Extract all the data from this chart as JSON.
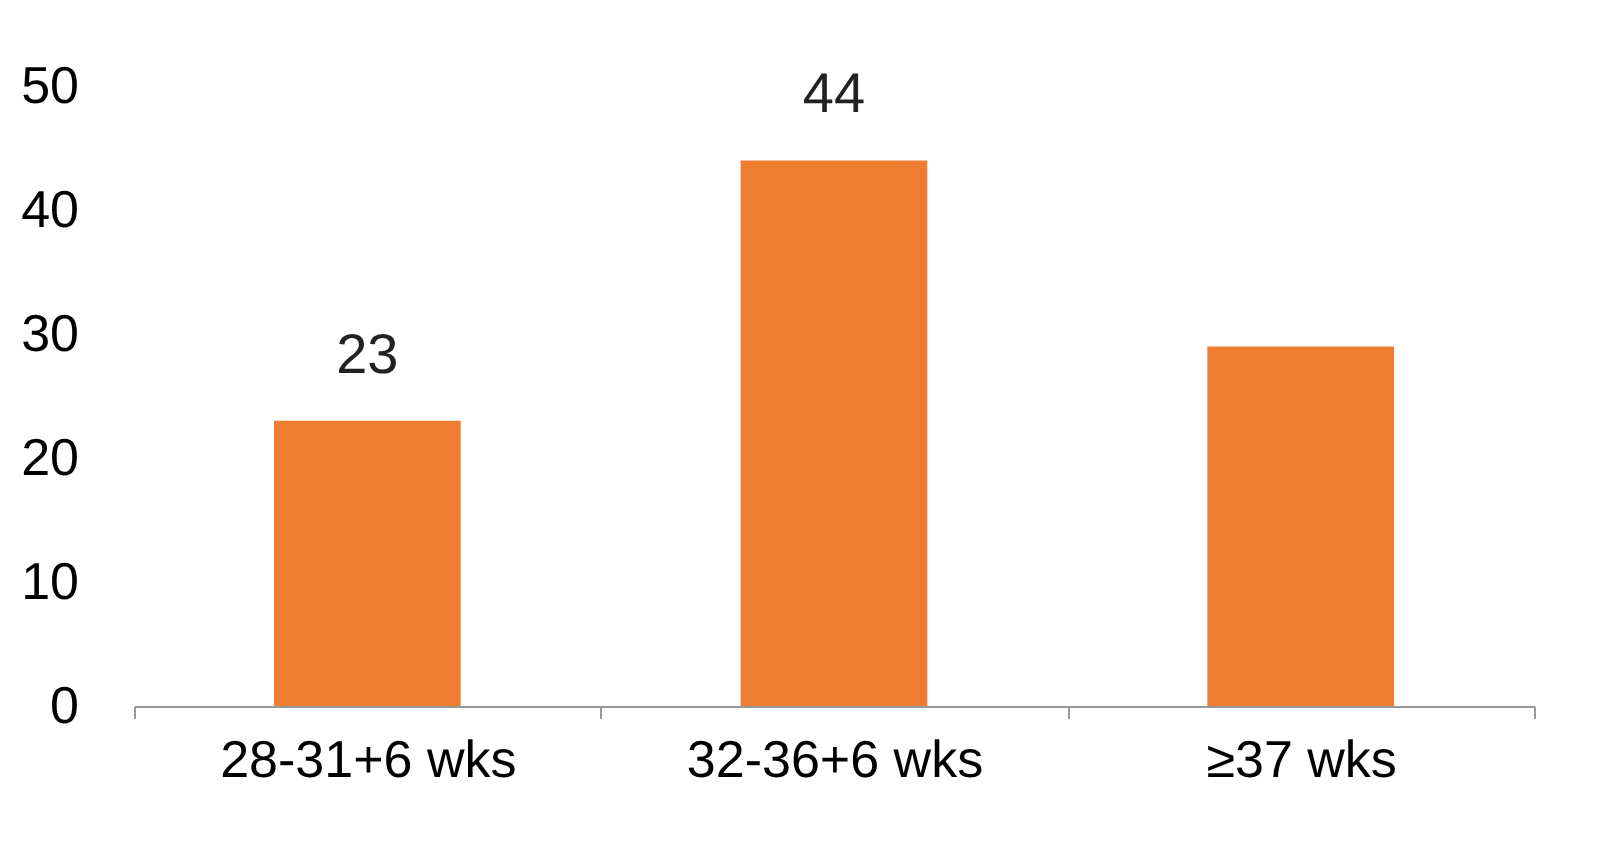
{
  "chart_data": {
    "type": "bar",
    "categories": [
      "28-31+6 wks",
      "32-36+6 wks",
      "≥37 wks"
    ],
    "values": [
      23,
      44,
      29
    ],
    "value_labels": [
      "23",
      "44",
      null
    ],
    "color": "#ed7d31",
    "ylim": [
      0,
      50
    ],
    "yticks": [
      0,
      10,
      20,
      30,
      40,
      50
    ],
    "grid": false
  }
}
